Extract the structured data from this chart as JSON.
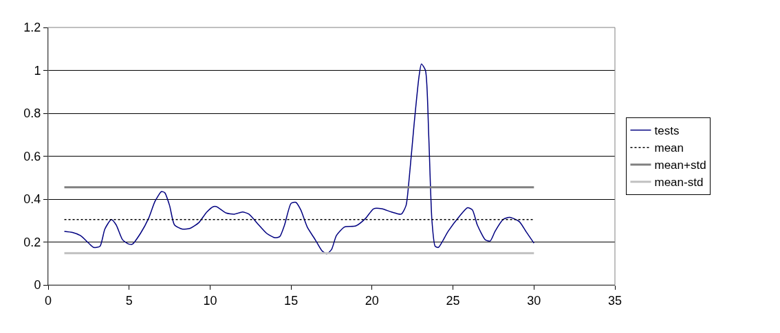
{
  "chart_data": {
    "type": "line",
    "series": [
      {
        "name": "tests",
        "color": "#000080",
        "line_style": "solid",
        "x": [
          1,
          1.5,
          2,
          2.5,
          2.8,
          3.2,
          3.5,
          3.9,
          4.2,
          4.6,
          5,
          5.2,
          5.7,
          6.2,
          6.6,
          7,
          7.2,
          7.5,
          7.8,
          8.3,
          8.8,
          9.3,
          9.8,
          10.2,
          10.4,
          11,
          11.5,
          12,
          12.4,
          13,
          13.5,
          14,
          14.3,
          14.6,
          15,
          15.3,
          15.6,
          16,
          16.5,
          16.9,
          17.2,
          17.5,
          17.8,
          18.3,
          19,
          19.6,
          20.1,
          20.6,
          21.2,
          21.8,
          22.1,
          22.3,
          22.6,
          22.9,
          23.05,
          23.3,
          23.5,
          23.7,
          23.9,
          24.1,
          24.7,
          25.4,
          25.9,
          26.2,
          26.5,
          27,
          27.3,
          27.6,
          28.1,
          28.5,
          29.1,
          29.5,
          30
        ],
        "values": [
          0.25,
          0.245,
          0.23,
          0.195,
          0.175,
          0.18,
          0.26,
          0.305,
          0.28,
          0.21,
          0.19,
          0.19,
          0.24,
          0.31,
          0.39,
          0.435,
          0.43,
          0.37,
          0.28,
          0.26,
          0.265,
          0.29,
          0.34,
          0.365,
          0.365,
          0.335,
          0.33,
          0.34,
          0.33,
          0.28,
          0.24,
          0.22,
          0.225,
          0.28,
          0.38,
          0.385,
          0.35,
          0.27,
          0.21,
          0.16,
          0.145,
          0.165,
          0.23,
          0.27,
          0.275,
          0.31,
          0.355,
          0.355,
          0.34,
          0.33,
          0.37,
          0.5,
          0.75,
          0.97,
          1.03,
          1.0,
          0.7,
          0.3,
          0.18,
          0.175,
          0.25,
          0.32,
          0.36,
          0.35,
          0.28,
          0.21,
          0.205,
          0.25,
          0.305,
          0.315,
          0.295,
          0.25,
          0.195
        ]
      },
      {
        "name": "mean",
        "color": "#000000",
        "line_style": "dotted",
        "x": [
          1,
          30
        ],
        "values": [
          0.305,
          0.305
        ]
      },
      {
        "name": "mean+std",
        "color": "#808080",
        "line_style": "solid",
        "x": [
          1,
          30
        ],
        "values": [
          0.455,
          0.455
        ]
      },
      {
        "name": "mean-std",
        "color": "#c0c0c0",
        "line_style": "solid",
        "x": [
          1,
          30
        ],
        "values": [
          0.148,
          0.148
        ]
      }
    ],
    "xlim": [
      0,
      35
    ],
    "xticks": [
      0,
      5,
      10,
      15,
      20,
      25,
      30,
      35
    ],
    "ylim": [
      0,
      1.2
    ],
    "yticks": [
      0,
      0.2,
      0.4,
      0.6,
      0.8,
      1,
      1.2
    ],
    "grid": "y",
    "legend": "right",
    "marker": "none"
  }
}
